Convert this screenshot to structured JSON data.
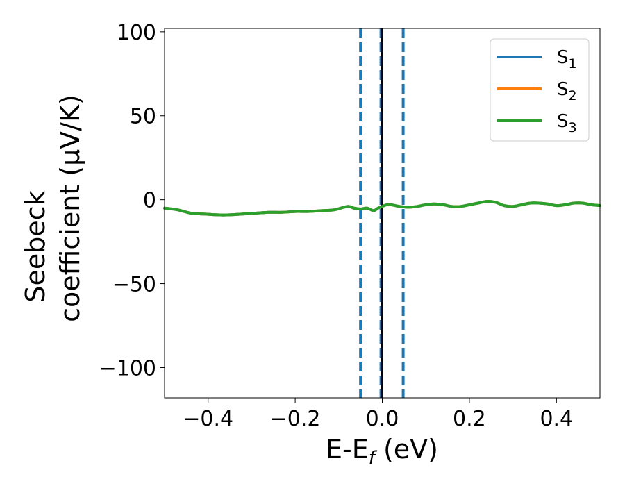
{
  "chart_data": {
    "type": "line",
    "title": "",
    "xlabel": "E-E",
    "xlabel_sub": "f",
    "xlabel_unit": " (eV)",
    "ylabel_line1": "Seebeck",
    "ylabel_line2": "coefficient  (μV/K)",
    "xlim": [
      -0.5,
      0.5
    ],
    "ylim": [
      -118,
      102
    ],
    "xticks": [
      -0.4,
      -0.2,
      0.0,
      0.2,
      0.4
    ],
    "xtick_labels": [
      "−0.4",
      "−0.2",
      "0.0",
      "0.2",
      "0.4"
    ],
    "yticks": [
      100,
      50,
      0,
      -50,
      -100
    ],
    "ytick_labels": [
      "100",
      "50",
      "0",
      "−50",
      "−100"
    ],
    "grid": false,
    "legend_position": "top-right",
    "x": [
      -0.5,
      -0.47,
      -0.44,
      -0.41,
      -0.38,
      -0.35,
      -0.32,
      -0.29,
      -0.26,
      -0.23,
      -0.2,
      -0.17,
      -0.14,
      -0.11,
      -0.08,
      -0.065,
      -0.05,
      -0.035,
      -0.02,
      -0.01,
      0.0,
      0.01,
      0.02,
      0.04,
      0.06,
      0.08,
      0.1,
      0.12,
      0.14,
      0.16,
      0.18,
      0.2,
      0.22,
      0.24,
      0.26,
      0.28,
      0.3,
      0.32,
      0.34,
      0.36,
      0.38,
      0.4,
      0.42,
      0.44,
      0.46,
      0.48,
      0.5
    ],
    "series": [
      {
        "name": "S",
        "name_sub": "1",
        "color": "#1f77b4",
        "values": [
          -5,
          -6,
          -8,
          -8.5,
          -9,
          -9,
          -8.5,
          -8,
          -7.5,
          -7.5,
          -7,
          -7,
          -6.5,
          -6,
          -4,
          -5,
          -5.5,
          -5,
          -6.5,
          -5,
          -4,
          -3,
          -3,
          -4,
          -4.5,
          -4,
          -3,
          -2.5,
          -3,
          -4,
          -4,
          -3,
          -2,
          -1,
          -1.5,
          -3.5,
          -4,
          -3,
          -2,
          -2,
          -2.5,
          -3.5,
          -3,
          -2,
          -2,
          -3,
          -3.5
        ]
      },
      {
        "name": "S",
        "name_sub": "2",
        "color": "#ff7f0e",
        "values": [
          -5,
          -6,
          -8,
          -8.5,
          -9,
          -9,
          -8.5,
          -8,
          -7.5,
          -7.5,
          -7,
          -7,
          -6.5,
          -6,
          -4,
          -5,
          -5.5,
          -5,
          -6.5,
          -5,
          -4,
          -3,
          -3,
          -4,
          -4.5,
          -4,
          -3,
          -2.5,
          -3,
          -4,
          -4,
          -3,
          -2,
          -1,
          -1.5,
          -3.5,
          -4,
          -3,
          -2,
          -2,
          -2.5,
          -3.5,
          -3,
          -2,
          -2,
          -3,
          -3.5
        ]
      },
      {
        "name": "S",
        "name_sub": "3",
        "color": "#2ca02c",
        "values": [
          -5,
          -6,
          -8,
          -8.5,
          -9,
          -9,
          -8.5,
          -8,
          -7.5,
          -7.5,
          -7,
          -7,
          -6.5,
          -6,
          -4,
          -5,
          -5.5,
          -5,
          -6.5,
          -5,
          -4,
          -3,
          -3,
          -4,
          -4.5,
          -4,
          -3,
          -2.5,
          -3,
          -4,
          -4,
          -3,
          -2,
          -1,
          -1.5,
          -3.5,
          -4,
          -3,
          -2,
          -2,
          -2.5,
          -3.5,
          -3,
          -2,
          -2,
          -3,
          -3.5
        ]
      }
    ],
    "vlines": [
      {
        "x": -0.05,
        "style": "dashed",
        "color": "#1f77b4"
      },
      {
        "x": -0.003,
        "style": "dashed",
        "color": "#1f77b4"
      },
      {
        "x": 0.0,
        "style": "solid",
        "color": "#000000"
      },
      {
        "x": 0.048,
        "style": "dashed",
        "color": "#1f77b4"
      }
    ]
  }
}
